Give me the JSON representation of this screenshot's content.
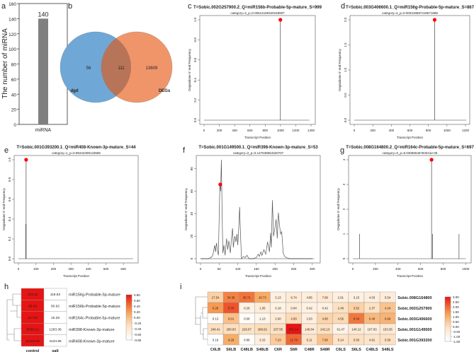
{
  "panel_letters": [
    "a",
    "b",
    "c",
    "d",
    "e",
    "f",
    "g",
    "h",
    "i"
  ],
  "chart_data": [
    {
      "id": "a",
      "type": "bar",
      "categories": [
        "miRNA"
      ],
      "values": [
        140
      ],
      "data_labels": [
        "140"
      ],
      "xlabel": "",
      "ylabel": "The number of miRNA",
      "ylim": [
        0,
        160
      ],
      "yticks": [
        "0",
        "20",
        "40",
        "60",
        "80",
        "100",
        "120",
        "140",
        "160"
      ],
      "color": "#808080"
    },
    {
      "id": "b",
      "type": "venn",
      "sets": [
        {
          "name": "dgd",
          "only": "56",
          "color": "#6fa8d6"
        },
        {
          "name": "DEGs",
          "only": "13609",
          "color": "#f0956a"
        }
      ],
      "intersection": "111",
      "intersection_color": "#b87458"
    },
    {
      "id": "c",
      "type": "spike",
      "title": "T=Sobic.002G257900.2_Q=miR156b-Probable-5p-mature_S=999",
      "subtitle": "category=4_p=0.00614159340158997",
      "xlabel": "Transcript Position",
      "ylabel": "Degradome 5' end Frequency",
      "xlim": [
        0,
        1400
      ],
      "ylim": [
        0,
        1
      ],
      "xticks": [
        "0",
        "200",
        "400",
        "600",
        "800",
        "1000",
        "1200",
        "1400"
      ],
      "yticks": [
        "0.0",
        "0.2",
        "0.4",
        "0.6",
        "0.8",
        "1.0"
      ],
      "length": 1380,
      "spikes": [
        [
          999,
          1
        ]
      ],
      "target": [
        999,
        1
      ]
    },
    {
      "id": "d",
      "type": "spike",
      "title": "T=Sobic.003G406600.1_Q=miR156g-Probable-5p-mature_S=867",
      "subtitle": "category=3_p=0.000318687419671688",
      "xlabel": "Transcript Position",
      "ylabel": "Degradome 5' end Frequency",
      "xlim": [
        0,
        1200
      ],
      "ylim": [
        0,
        2
      ],
      "xticks": [
        "0",
        "200",
        "400",
        "600",
        "800",
        "1000",
        "1200"
      ],
      "yticks": [
        "0.0",
        "0.5",
        "1.0",
        "1.5",
        "2.0"
      ],
      "length": 1210,
      "spikes": [
        [
          867,
          2
        ]
      ],
      "target": [
        867,
        2
      ]
    },
    {
      "id": "e",
      "type": "spike",
      "title": "T=Sobic.001G393200.1_Q=miR408-Known-3p-mature_S=44",
      "subtitle": "category=1_p=0.99442308143585",
      "xlabel": "Transcript Position",
      "ylabel": "Degradome 5' end Frequency",
      "xlim": [
        0,
        660
      ],
      "ylim": [
        0,
        1
      ],
      "xticks": [
        "0",
        "100",
        "200",
        "300",
        "400",
        "500",
        "600"
      ],
      "yticks": [
        "0.0",
        "0.2",
        "0.4",
        "0.6",
        "0.8",
        "1.0"
      ],
      "length": 655,
      "spikes": [
        [
          42,
          0.35
        ],
        [
          44,
          1
        ]
      ],
      "target": [
        44,
        1
      ]
    },
    {
      "id": "f",
      "type": "line",
      "title": "T=Sobic.001G149500.1_Q=miR398-Known-3p-mature_S=53",
      "subtitle": "category=2_p=0.147639564320707",
      "xlabel": "Transcript Position",
      "ylabel": "Degradome 5' end Frequency",
      "xlim": [
        0,
        310
      ],
      "ylim": [
        0,
        88
      ],
      "xticks": [
        "0",
        "50",
        "100",
        "150",
        "200",
        "250",
        "300"
      ],
      "yticks": [
        "0",
        "20",
        "40",
        "60",
        "80"
      ],
      "length": 305,
      "points": [
        [
          0,
          0
        ],
        [
          5,
          0
        ],
        [
          10,
          0
        ],
        [
          20,
          0
        ],
        [
          28,
          1
        ],
        [
          33,
          3
        ],
        [
          38,
          12
        ],
        [
          40,
          6
        ],
        [
          43,
          14
        ],
        [
          45,
          8
        ],
        [
          48,
          3
        ],
        [
          50,
          35
        ],
        [
          52,
          66
        ],
        [
          54,
          60
        ],
        [
          56,
          88
        ],
        [
          58,
          40
        ],
        [
          60,
          5
        ],
        [
          63,
          12
        ],
        [
          66,
          3
        ],
        [
          70,
          18
        ],
        [
          73,
          8
        ],
        [
          76,
          16
        ],
        [
          80,
          5
        ],
        [
          83,
          18
        ],
        [
          86,
          27
        ],
        [
          88,
          10
        ],
        [
          92,
          20
        ],
        [
          95,
          15
        ],
        [
          98,
          22
        ],
        [
          100,
          12
        ],
        [
          103,
          30
        ],
        [
          105,
          46
        ],
        [
          107,
          25
        ],
        [
          110,
          0
        ],
        [
          115,
          2
        ],
        [
          120,
          1
        ],
        [
          125,
          3
        ],
        [
          130,
          0
        ],
        [
          140,
          0
        ],
        [
          150,
          1
        ],
        [
          155,
          4
        ],
        [
          158,
          2
        ],
        [
          162,
          6
        ],
        [
          165,
          3
        ],
        [
          170,
          8
        ],
        [
          175,
          4
        ],
        [
          180,
          15
        ],
        [
          185,
          6
        ],
        [
          188,
          23
        ],
        [
          190,
          10
        ],
        [
          193,
          52
        ],
        [
          196,
          20
        ],
        [
          200,
          28
        ],
        [
          203,
          35
        ],
        [
          206,
          18
        ],
        [
          209,
          41
        ],
        [
          212,
          30
        ],
        [
          215,
          22
        ],
        [
          218,
          24
        ],
        [
          222,
          5
        ],
        [
          226,
          2
        ],
        [
          230,
          1
        ],
        [
          240,
          0
        ],
        [
          250,
          0
        ],
        [
          260,
          0
        ],
        [
          270,
          0
        ],
        [
          300,
          0
        ]
      ],
      "target": [
        53,
        66
      ]
    },
    {
      "id": "g",
      "type": "spike",
      "title": "T=Sobic.008G164800.2_Q=miR164c-Probable-5p-mature_S=697",
      "subtitle": "category=0_p=6.03066646784041e-05",
      "xlabel": "Transcript Position",
      "ylabel": "Degradome 5' end Frequency",
      "xlim": [
        0,
        1010
      ],
      "ylim": [
        0,
        4
      ],
      "xticks": [
        "0",
        "200",
        "400",
        "600",
        "800",
        "1000"
      ],
      "yticks": [
        "0",
        "1",
        "2",
        "3",
        "4"
      ],
      "length": 1000,
      "spikes": [
        [
          60,
          1
        ],
        [
          697,
          4
        ],
        [
          705,
          1
        ],
        [
          940,
          1
        ]
      ],
      "target": [
        697,
        4
      ]
    },
    {
      "id": "h",
      "type": "heatmap",
      "columns": [
        "control",
        "salt"
      ],
      "rows": [
        "miR156g-Probable-5p-mature",
        "miR156b-Probable-5p-mature",
        "miR164c-Probable-5p-mature",
        "miR398-Known-3p-mature",
        "miR408-Known-3p-mature"
      ],
      "values": [
        [
          "133.22",
          "118.82"
        ],
        [
          "96.93",
          "50.92"
        ],
        [
          "117.82",
          "15.28"
        ],
        [
          "5568.13",
          "1283.36"
        ],
        [
          "12423.55",
          "4134.95"
        ]
      ],
      "colorbar_ticks": [
        "0.80",
        "0.60",
        "0.40",
        "0.20",
        "0.00",
        "-0.20",
        "-0.40",
        "-0.60",
        "-0.80"
      ],
      "colorbar_range": [
        -0.8,
        0.8
      ]
    },
    {
      "id": "i",
      "type": "heatmap",
      "columns": [
        "C6LB",
        "S6LB",
        "C48LB",
        "S48LB",
        "C6R",
        "S6R",
        "C48R",
        "S48R",
        "C6LS",
        "S6LS",
        "C48LS",
        "S48LS"
      ],
      "rows": [
        "Sobic.008G164800",
        "Sobic.002G257900",
        "Sobic.003G406600",
        "Sobic.001G149500",
        "Sobic.001G393200"
      ],
      "values": [
        [
          "17.54",
          "34.36",
          "36.71",
          "26.73",
          "3.13",
          "6.74",
          "4.85",
          "7.86",
          "2.81",
          "3.15",
          "4.03",
          "5.54"
        ],
        [
          "6.26",
          "8.79",
          "0.29",
          "1.05",
          "0.18",
          "0.84",
          "0.42",
          "0.42",
          "2.48",
          "3.52",
          "2.37",
          "4.24"
        ],
        [
          "0.13",
          "6.01",
          "0.09",
          "1.13",
          "2.60",
          "4.50",
          "2.03",
          "4.90",
          "4.56",
          "9.34",
          "6.40",
          "6.69"
        ],
        [
          "249.41",
          "260.93",
          "226.67",
          "268.62",
          "237.55",
          "871.14",
          "145.84",
          "242.13",
          "61.47",
          "140.12",
          "107.93",
          "153.36"
        ],
        [
          "0.19",
          "9.28",
          "0.89",
          "3.15",
          "7.23",
          "12.79",
          "5.11",
          "7.90",
          "5.14",
          "5.66",
          "4.81",
          "5.56"
        ]
      ],
      "colorbar_ticks": [
        "3.00",
        "2.50",
        "2.00",
        "1.50",
        "1.00",
        "0.50",
        "0.00",
        "-0.50",
        "-1.00",
        "-1.50"
      ],
      "colorbar_range": [
        -1.5,
        3.0
      ]
    }
  ]
}
